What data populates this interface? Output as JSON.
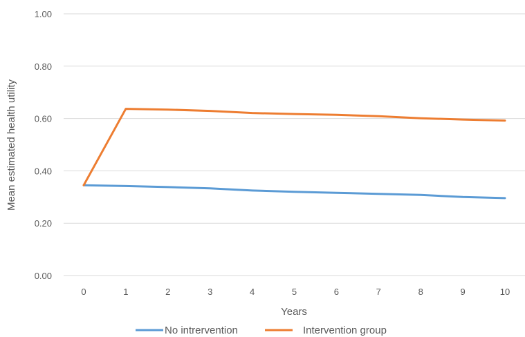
{
  "chart_data": {
    "type": "line",
    "title": "",
    "xlabel": "Years",
    "ylabel": "Mean estimated health utility",
    "x": [
      0,
      1,
      2,
      3,
      4,
      5,
      6,
      7,
      8,
      9,
      10
    ],
    "ylim": [
      0,
      1
    ],
    "yticks": [
      "0.00",
      "0.20",
      "0.40",
      "0.60",
      "0.80",
      "1.00"
    ],
    "grid": true,
    "legend_position": "bottom",
    "series": [
      {
        "name": "No intrervention",
        "color": "#5B9BD5",
        "values": [
          0.345,
          0.342,
          0.338,
          0.333,
          0.325,
          0.32,
          0.316,
          0.312,
          0.308,
          0.3,
          0.296
        ]
      },
      {
        "name": "Intervention group",
        "color": "#ED7D31",
        "values": [
          0.345,
          0.637,
          0.634,
          0.629,
          0.621,
          0.617,
          0.614,
          0.609,
          0.601,
          0.596,
          0.592
        ]
      }
    ]
  }
}
